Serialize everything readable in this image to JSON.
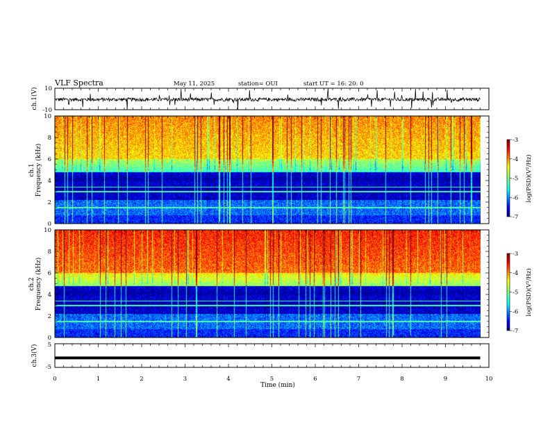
{
  "header": {
    "title": "VLF Spectra",
    "date": "May 11, 2025",
    "station": "station= OUI",
    "start": "start  UT  =   16: 20: 0"
  },
  "chart_data": [
    {
      "type": "line",
      "name": "ch1-waveform",
      "ylabel": "ch.1(V)",
      "ylim": [
        -10,
        10
      ],
      "yticks": [
        "10",
        "-10"
      ],
      "xlim": [
        0,
        10
      ],
      "trace_extent_min": [
        0,
        9.8
      ],
      "baseline_v": -0.5,
      "description_level": "noise band roughly ±2 V with spikes"
    },
    {
      "type": "heatmap",
      "name": "ch1-spectrogram",
      "ylabel_top": "ch.1",
      "ylabel": "Frequency  (kHz)",
      "ylim": [
        0,
        10
      ],
      "yticks": [
        "0",
        "2",
        "4",
        "6",
        "8",
        "10"
      ],
      "xlim": [
        0,
        10
      ],
      "data_extent_min": [
        0,
        9.8
      ],
      "colorbar": {
        "label": "log(PSD)(V²/Hz)",
        "ticks": [
          "-3",
          "-4",
          "-5",
          "-6",
          "-7"
        ],
        "range": [
          -7,
          -3
        ]
      }
    },
    {
      "type": "heatmap",
      "name": "ch2-spectrogram",
      "ylabel_top": "ch.2",
      "ylabel": "Frequency  (kHz)",
      "ylim": [
        0,
        10
      ],
      "yticks": [
        "0",
        "2",
        "4",
        "6",
        "8",
        "10"
      ],
      "xlim": [
        0,
        10
      ],
      "data_extent_min": [
        0,
        9.8
      ],
      "colorbar": {
        "label": "log(PSD)(V²/Hz)",
        "ticks": [
          "-3",
          "-4",
          "-5",
          "-6",
          "-7"
        ],
        "range": [
          -7,
          -3
        ]
      }
    },
    {
      "type": "line",
      "name": "ch3-waveform",
      "ylabel": "ch.3(V)",
      "ylim": [
        -5,
        5
      ],
      "yticks": [
        "5",
        "-5"
      ],
      "xlim": [
        0,
        10
      ],
      "trace_extent_min": [
        0,
        9.8
      ],
      "baseline_v": -1.0
    }
  ],
  "xaxis": {
    "label": "Time  (min)",
    "ticks": [
      "0",
      "1",
      "2",
      "3",
      "4",
      "5",
      "6",
      "7",
      "8",
      "9",
      "10"
    ]
  },
  "colors": {
    "line": "#000000",
    "colormap": [
      "#00007f",
      "#0000ff",
      "#00ffff",
      "#7fff7f",
      "#ffff00",
      "#ff0000",
      "#7f0000"
    ]
  }
}
